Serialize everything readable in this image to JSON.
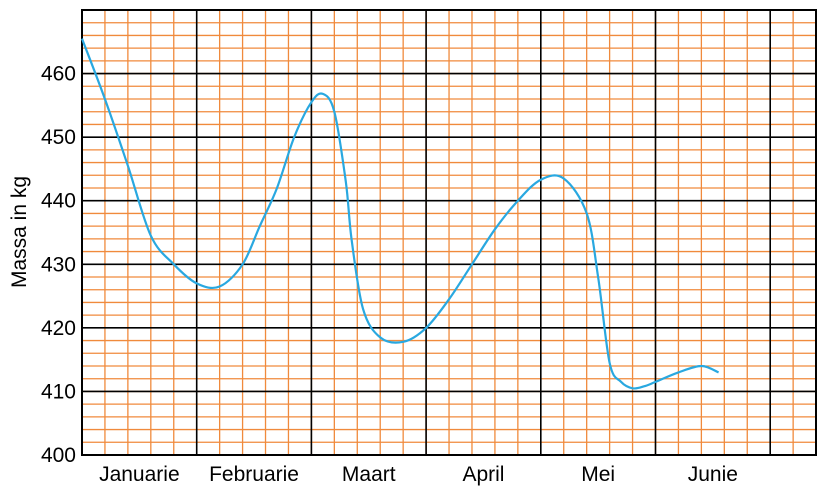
{
  "chart_data": {
    "type": "line",
    "title": "",
    "xlabel": "",
    "ylabel": "Massa in kg",
    "ylim": [
      400,
      470
    ],
    "yticks": [
      400,
      410,
      420,
      430,
      440,
      450,
      460
    ],
    "months": [
      "Januarie",
      "Februarie",
      "Maart",
      "April",
      "Mei",
      "Junie"
    ],
    "xlim": [
      0,
      5.55
    ],
    "grid": true,
    "colors": {
      "line": "#29a8e0",
      "minor_grid": "#f08a3c",
      "major_grid": "#000000"
    },
    "series": [
      {
        "name": "",
        "x": [
          0.0,
          0.2,
          0.4,
          0.6,
          0.8,
          1.0,
          1.2,
          1.4,
          1.55,
          1.7,
          1.85,
          2.0,
          2.1,
          2.2,
          2.3,
          2.35,
          2.45,
          2.6,
          2.8,
          3.0,
          3.2,
          3.4,
          3.6,
          3.8,
          4.0,
          4.2,
          4.4,
          4.5,
          4.6,
          4.7,
          4.8,
          4.9,
          5.0,
          5.2,
          5.4,
          5.55
        ],
        "y": [
          465.5,
          456.0,
          445.5,
          434.5,
          430.0,
          427.0,
          426.5,
          430.0,
          436.0,
          442.0,
          450.0,
          455.5,
          456.8,
          454.0,
          443.0,
          434.0,
          423.0,
          418.5,
          417.8,
          420.0,
          424.5,
          430.0,
          435.5,
          440.0,
          443.3,
          443.5,
          438.0,
          428.0,
          414.5,
          411.5,
          410.5,
          410.8,
          411.5,
          413.0,
          414.0,
          413.0
        ]
      }
    ]
  }
}
